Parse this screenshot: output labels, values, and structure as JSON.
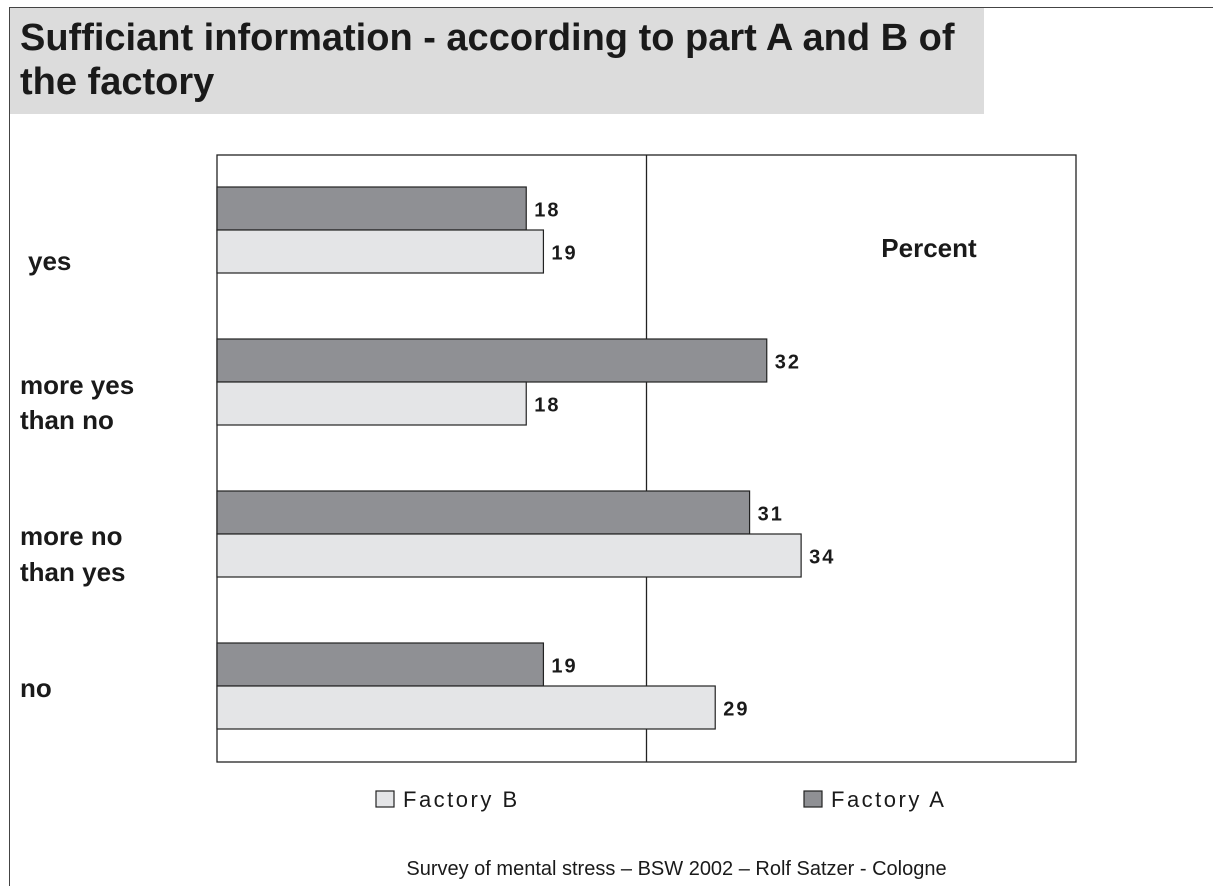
{
  "title": "Sufficiant information - according to part A and B of the factory",
  "footer": "Survey of mental stress – BSW 2002 –  Rolf Satzer - Cologne",
  "chart_data": {
    "type": "bar",
    "orientation": "horizontal",
    "title": "Sufficiant information - according to part A and B of the factory",
    "unit_label": "Percent",
    "categories": [
      "yes",
      "more yes than no",
      "more no than yes",
      "no"
    ],
    "category_lines": [
      [
        "yes"
      ],
      [
        "more yes",
        "than no"
      ],
      [
        "more no",
        "than yes"
      ],
      [
        "no"
      ]
    ],
    "series": [
      {
        "name": "Factory A",
        "values": [
          18,
          32,
          31,
          19
        ],
        "color": "#8f9094"
      },
      {
        "name": "Factory B",
        "values": [
          19,
          18,
          34,
          29
        ],
        "color": "#e4e5e7"
      }
    ],
    "legend_order": [
      "Factory B",
      "Factory A"
    ],
    "legend_placement": "bottom",
    "xlim": [
      0,
      50
    ],
    "xgrid": [
      25
    ],
    "grid": false
  }
}
